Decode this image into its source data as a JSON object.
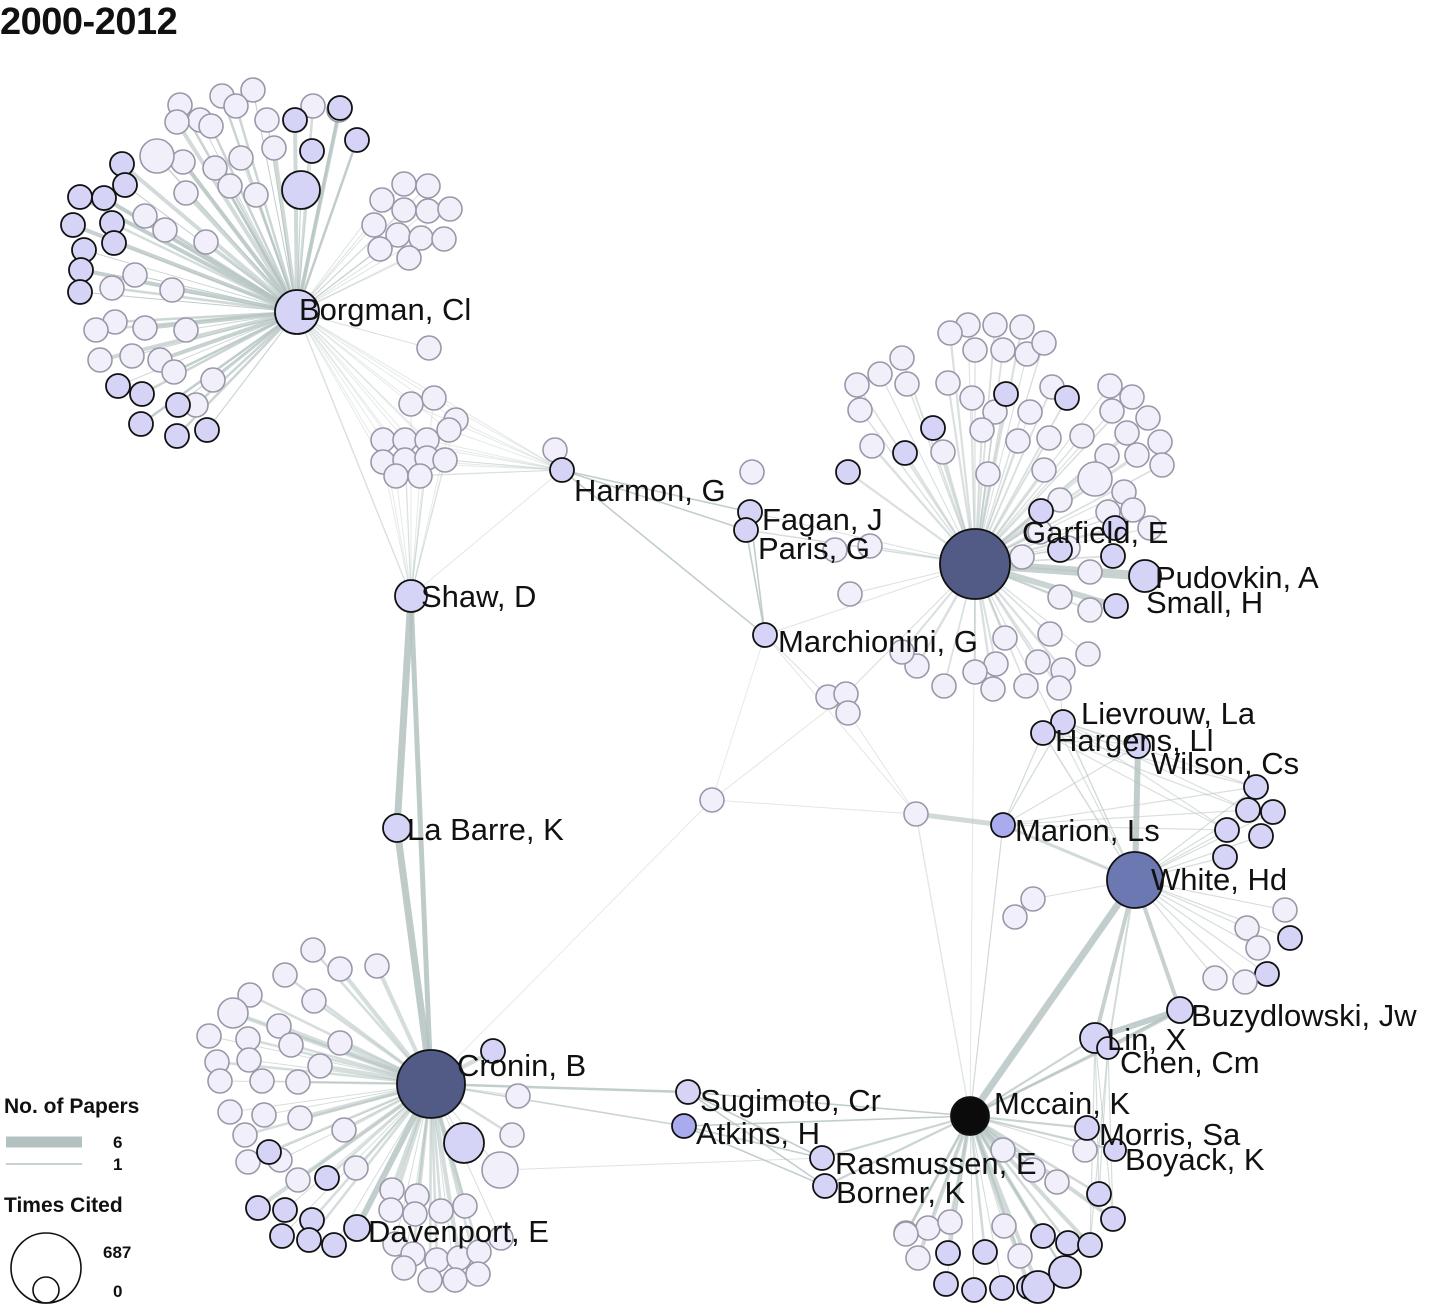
{
  "title": "2000-2012",
  "colors": {
    "edge": "#b3c2c0",
    "node_faint_fill": "#f1f0fa",
    "node_faint_stroke": "#9a98a8",
    "node_light_fill": "#d5d4f6",
    "node_dark_stroke": "#111111",
    "hub_dark": "#525a86",
    "hub_mid": "#6c78b2",
    "hub_black": "#0b0b0b"
  },
  "authors": [
    {
      "id": "borgman",
      "label": "Borgman, Cl"
    },
    {
      "id": "shaw",
      "label": "Shaw, D"
    },
    {
      "id": "labarre",
      "label": "La Barre, K"
    },
    {
      "id": "cronin",
      "label": "Cronin, B"
    },
    {
      "id": "davenport",
      "label": "Davenport, E"
    },
    {
      "id": "sugimoto",
      "label": "Sugimoto, Cr"
    },
    {
      "id": "atkins",
      "label": "Atkins, H"
    },
    {
      "id": "rasmussen",
      "label": "Rasmussen, E"
    },
    {
      "id": "borner",
      "label": "Borner, K"
    },
    {
      "id": "harmon",
      "label": "Harmon, G"
    },
    {
      "id": "fagan",
      "label": "Fagan, J"
    },
    {
      "id": "paris",
      "label": "Paris, G"
    },
    {
      "id": "marchionini",
      "label": "Marchionini, G"
    },
    {
      "id": "garfield",
      "label": "Garfield, E"
    },
    {
      "id": "pudovkin",
      "label": "Pudovkin, A"
    },
    {
      "id": "small",
      "label": "Small, H"
    },
    {
      "id": "lievrouw",
      "label": "Lievrouw, La"
    },
    {
      "id": "hargens",
      "label": "Hargens, Ll"
    },
    {
      "id": "wilson",
      "label": "Wilson, Cs"
    },
    {
      "id": "marion",
      "label": "Marion, Ls"
    },
    {
      "id": "white",
      "label": "White, Hd"
    },
    {
      "id": "buzydlowski",
      "label": "Buzydlowski, Jw"
    },
    {
      "id": "lin",
      "label": "Lin, X"
    },
    {
      "id": "chen",
      "label": "Chen, Cm"
    },
    {
      "id": "mccain",
      "label": "Mccain, K"
    },
    {
      "id": "morris",
      "label": "Morris, Sa"
    },
    {
      "id": "boyack",
      "label": "Boyack, K"
    }
  ],
  "legend": {
    "papers_title": "No. of Papers",
    "papers_max": "6",
    "papers_min": "1",
    "cited_title": "Times Cited",
    "cited_max": "687",
    "cited_min": "0"
  }
}
